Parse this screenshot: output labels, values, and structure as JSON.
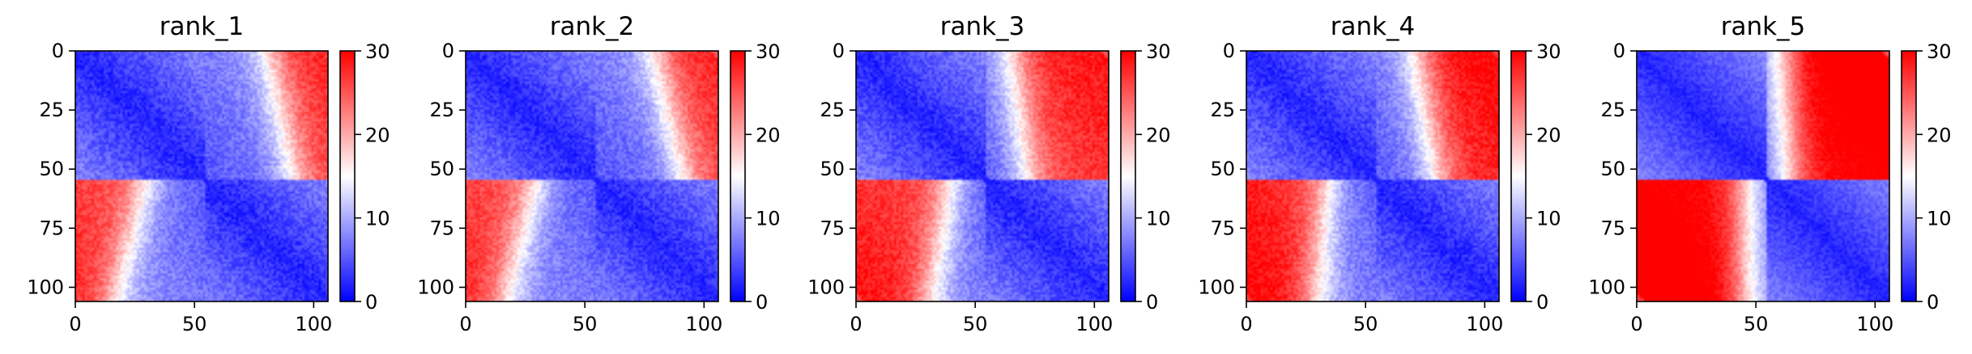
{
  "chart_data": [
    {
      "type": "heatmap",
      "title": "rank_1",
      "n": 107,
      "xlim": [
        0,
        106
      ],
      "ylim": [
        106,
        0
      ],
      "xticks": [
        0,
        50,
        100
      ],
      "yticks": [
        0,
        25,
        50,
        75,
        100
      ],
      "colorbar": {
        "range": [
          0,
          30
        ],
        "ticks": [
          0,
          10,
          20,
          30
        ],
        "colormap": "bwr"
      },
      "pattern": {
        "split": 55,
        "off_block_value": 24,
        "boundary_q1": [
          82,
          92
        ],
        "boundary_q2": [
          30,
          15
        ],
        "noise": 2.0
      }
    },
    {
      "type": "heatmap",
      "title": "rank_2",
      "n": 107,
      "xlim": [
        0,
        106
      ],
      "ylim": [
        106,
        0
      ],
      "xticks": [
        0,
        50,
        100
      ],
      "yticks": [
        0,
        25,
        50,
        75,
        100
      ],
      "colorbar": {
        "range": [
          0,
          30
        ],
        "ticks": [
          0,
          10,
          20,
          30
        ],
        "colormap": "bwr"
      },
      "pattern": {
        "split": 55,
        "off_block_value": 24,
        "boundary_q1": [
          80,
          92
        ],
        "boundary_q2": [
          30,
          15
        ],
        "noise": 2.0
      }
    },
    {
      "type": "heatmap",
      "title": "rank_3",
      "n": 107,
      "xlim": [
        0,
        106
      ],
      "ylim": [
        106,
        0
      ],
      "xticks": [
        0,
        50,
        100
      ],
      "yticks": [
        0,
        25,
        50,
        75,
        100
      ],
      "colorbar": {
        "range": [
          0,
          30
        ],
        "ticks": [
          0,
          10,
          20,
          30
        ],
        "colormap": "bwr"
      },
      "pattern": {
        "split": 55,
        "off_block_value": 25,
        "boundary_q1": [
          66,
          72
        ],
        "boundary_q2": [
          40,
          30
        ],
        "noise": 2.0
      }
    },
    {
      "type": "heatmap",
      "title": "rank_4",
      "n": 107,
      "xlim": [
        0,
        106
      ],
      "ylim": [
        106,
        0
      ],
      "xticks": [
        0,
        50,
        100
      ],
      "yticks": [
        0,
        25,
        50,
        75,
        100
      ],
      "colorbar": {
        "range": [
          0,
          30
        ],
        "ticks": [
          0,
          10,
          20,
          30
        ],
        "colormap": "bwr"
      },
      "pattern": {
        "split": 55,
        "off_block_value": 26,
        "boundary_q1": [
          72,
          80
        ],
        "boundary_q2": [
          34,
          28
        ],
        "noise": 2.0
      }
    },
    {
      "type": "heatmap",
      "title": "rank_5",
      "n": 107,
      "xlim": [
        0,
        106
      ],
      "ylim": [
        106,
        0
      ],
      "xticks": [
        0,
        50,
        100
      ],
      "yticks": [
        0,
        25,
        50,
        75,
        100
      ],
      "colorbar": {
        "range": [
          0,
          30
        ],
        "ticks": [
          0,
          10,
          20,
          30
        ],
        "colormap": "bwr"
      },
      "pattern": {
        "split": 55,
        "off_block_value": 29,
        "boundary_q1": [
          62,
          64
        ],
        "boundary_q2": [
          46,
          45
        ],
        "noise": 1.5
      }
    }
  ]
}
